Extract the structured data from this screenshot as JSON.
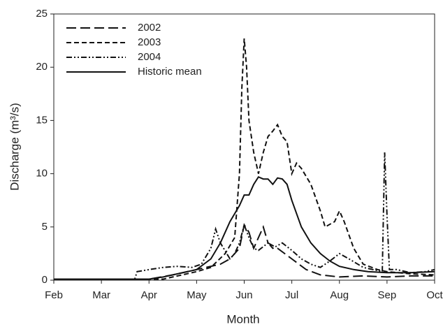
{
  "chart_data": {
    "type": "line",
    "xlabel": "Month",
    "ylabel": "Discharge (m³/s)",
    "xlim": [
      0,
      8
    ],
    "ylim": [
      0,
      25
    ],
    "xticks": [
      {
        "value": 0,
        "label": "Feb"
      },
      {
        "value": 1,
        "label": "Mar"
      },
      {
        "value": 2,
        "label": "Apr"
      },
      {
        "value": 3,
        "label": "May"
      },
      {
        "value": 4,
        "label": "Jun"
      },
      {
        "value": 5,
        "label": "Jul"
      },
      {
        "value": 6,
        "label": "Aug"
      },
      {
        "value": 7,
        "label": "Sep"
      },
      {
        "value": 8,
        "label": "Oct"
      }
    ],
    "yticks": [
      0,
      5,
      10,
      15,
      20,
      25
    ],
    "legend": "upper left",
    "series": [
      {
        "name": "2002",
        "color": "#111",
        "dash": "14,6",
        "x": [
          0,
          2.0,
          2.5,
          3.0,
          3.5,
          3.7,
          3.9,
          4.0,
          4.1,
          4.2,
          4.3,
          4.4,
          4.5,
          4.7,
          5.0,
          5.3,
          5.6,
          6.0,
          6.5,
          7.0,
          7.5,
          8.0
        ],
        "values": [
          0.1,
          0.1,
          0.5,
          1.0,
          1.5,
          2.0,
          3.0,
          5.2,
          4.5,
          3.0,
          4.0,
          5.0,
          3.5,
          3.0,
          2.0,
          1.0,
          0.5,
          0.3,
          0.4,
          0.3,
          0.4,
          0.4
        ]
      },
      {
        "name": "2003",
        "color": "#111",
        "dash": "7,4",
        "x": [
          0,
          2.3,
          2.5,
          3.0,
          3.3,
          3.6,
          3.8,
          3.9,
          3.95,
          4.0,
          4.05,
          4.1,
          4.2,
          4.3,
          4.4,
          4.5,
          4.6,
          4.7,
          4.8,
          4.9,
          5.0,
          5.1,
          5.2,
          5.4,
          5.6,
          5.7,
          5.9,
          6.0,
          6.1,
          6.3,
          6.5,
          6.8,
          7.0,
          7.5,
          8.0
        ],
        "values": [
          0.1,
          0.1,
          0.3,
          0.8,
          1.2,
          2.5,
          4.0,
          10,
          18,
          22.7,
          20,
          15,
          12,
          10,
          12,
          13.5,
          14,
          14.6,
          13.5,
          13,
          10,
          11,
          10.5,
          9,
          6.5,
          5,
          5.5,
          6.5,
          5.5,
          3.0,
          1.5,
          1.0,
          0.8,
          0.6,
          0.5
        ]
      },
      {
        "name": "2004",
        "color": "#111",
        "dash": "8,3,2,3,2,3",
        "x": [
          0,
          1.7,
          1.75,
          2.0,
          2.3,
          2.6,
          2.9,
          3.1,
          3.3,
          3.4,
          3.5,
          3.7,
          3.8,
          3.9,
          4.0,
          4.1,
          4.2,
          4.3,
          4.5,
          4.6,
          4.8,
          5.0,
          5.2,
          5.4,
          5.6,
          5.8,
          6.0,
          6.2,
          6.5,
          6.9,
          6.95,
          7.0,
          7.05,
          7.2,
          7.5,
          7.8,
          8.0
        ],
        "values": [
          0.1,
          0.1,
          0.8,
          1.0,
          1.2,
          1.3,
          1.2,
          1.5,
          3.0,
          4.8,
          3.5,
          2.0,
          2.5,
          3.5,
          5.2,
          4.0,
          3.0,
          2.8,
          3.5,
          3.0,
          3.5,
          2.8,
          2.0,
          1.5,
          1.2,
          1.8,
          2.5,
          2.0,
          1.2,
          0.8,
          12.0,
          6,
          1.0,
          1.0,
          0.7,
          0.8,
          1.0
        ]
      },
      {
        "name": "Historic mean",
        "color": "#111",
        "dash": "none",
        "x": [
          0,
          2.0,
          2.3,
          2.6,
          3.0,
          3.3,
          3.5,
          3.7,
          3.9,
          4.0,
          4.1,
          4.2,
          4.3,
          4.4,
          4.5,
          4.6,
          4.7,
          4.8,
          4.9,
          5.0,
          5.2,
          5.4,
          5.6,
          5.8,
          6.0,
          6.3,
          6.6,
          7.0,
          7.5,
          8.0
        ],
        "values": [
          0.1,
          0.1,
          0.3,
          0.6,
          1.0,
          2.0,
          3.5,
          5.5,
          7.0,
          8.0,
          8.0,
          9.0,
          9.7,
          9.5,
          9.5,
          9.0,
          9.6,
          9.5,
          9.0,
          7.5,
          5.0,
          3.5,
          2.5,
          1.8,
          1.3,
          1.0,
          0.8,
          0.7,
          0.7,
          0.8
        ]
      }
    ]
  }
}
